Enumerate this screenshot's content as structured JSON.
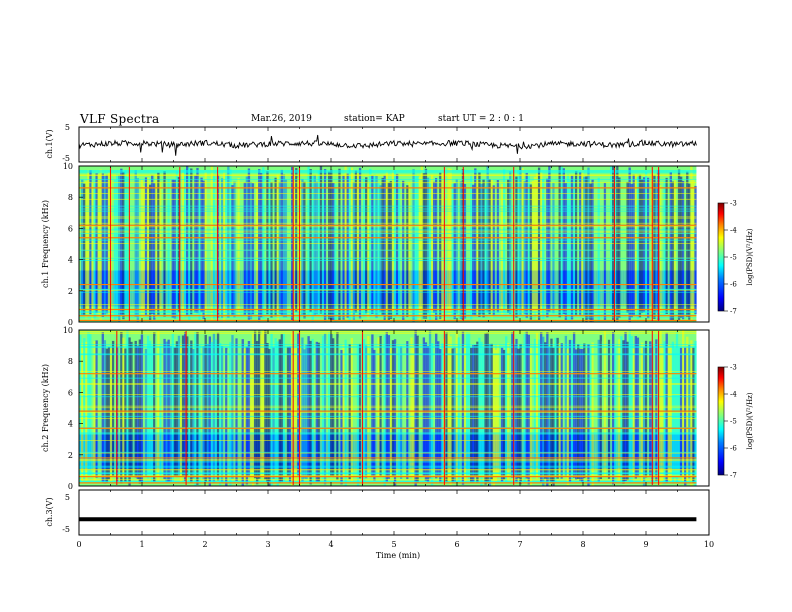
{
  "header": {
    "title": "VLF Spectra",
    "date": "Mar.26, 2019",
    "station": "station= KAP",
    "start": "start  UT =   2 : 0  : 1"
  },
  "colorbar": {
    "label": "log(PSD)(V²/Hz)",
    "ticks": [
      "-3",
      "-4",
      "-5",
      "-6",
      "-7"
    ]
  },
  "colors": {
    "background": "#ffffff",
    "frame": "#000000",
    "colormap": [
      "#00007f",
      "#0000ff",
      "#0080ff",
      "#00ffff",
      "#80ff80",
      "#ffff00",
      "#ff8000",
      "#ff0000",
      "#7f0000"
    ]
  },
  "chart_data": [
    {
      "type": "line",
      "ylabel": "ch.1(V)",
      "ylim": [
        -5,
        5
      ],
      "ytick_labels": [
        "5",
        "-5"
      ],
      "xlim": [
        0,
        10
      ],
      "x_extent_min": [
        0,
        9.8
      ],
      "description_level": "noisy waveform centred near 0 V, roughly -1 to +1 V",
      "x": [
        0,
        0.5,
        1,
        1.5,
        2,
        2.5,
        3,
        3.5,
        4,
        4.5,
        5,
        5.5,
        6,
        6.5,
        7,
        7.5,
        8,
        8.5,
        9,
        9.5,
        9.8
      ],
      "values": [
        -0.2,
        0.3,
        0.4,
        -0.1,
        0.5,
        -0.3,
        0.2,
        0.4,
        0.1,
        -0.4,
        0.3,
        0.1,
        0.5,
        -0.2,
        -0.5,
        0.1,
        0.3,
        -0.2,
        0.4,
        0.0,
        0.3
      ]
    },
    {
      "type": "heatmap",
      "ylabel": "ch.1\nFrequency (kHz)",
      "ylim": [
        0,
        10
      ],
      "ytick_labels": [
        "0",
        "2",
        "4",
        "6",
        "8",
        "10"
      ],
      "xlim": [
        0,
        10
      ],
      "x_extent_min": [
        0,
        9.8
      ],
      "zlim": [
        -7,
        -3
      ],
      "zlabel": "log(PSD)(V²/Hz)",
      "strong_lines_khz": [
        0.1,
        0.4,
        0.8,
        2.4,
        5.4,
        6.2,
        8.6
      ],
      "impulses_min": [
        0.5,
        0.8,
        1.6,
        2.2,
        3.4,
        3.5,
        5.8,
        6.1,
        6.9,
        8.5,
        9.1,
        9.2
      ]
    },
    {
      "type": "heatmap",
      "ylabel": "ch.2\nFrequency (kHz)",
      "ylim": [
        0,
        10
      ],
      "ytick_labels": [
        "0",
        "2",
        "4",
        "6",
        "8",
        "10"
      ],
      "xlim": [
        0,
        10
      ],
      "x_extent_min": [
        0,
        9.8
      ],
      "zlim": [
        -7,
        -3
      ],
      "zlabel": "log(PSD)(V²/Hz)",
      "strong_lines_khz": [
        0.2,
        0.6,
        1.8,
        3.7,
        4.8,
        7.2
      ],
      "impulses_min": [
        0.6,
        1.7,
        3.4,
        3.5,
        4.5,
        5.8,
        6.9,
        9.1,
        9.2
      ]
    },
    {
      "type": "line",
      "ylabel": "ch.3(V)",
      "ylim": [
        -5,
        5
      ],
      "ytick_labels": [
        "5",
        "-5"
      ],
      "xlim": [
        0,
        10
      ],
      "xlabel": "Time (min)",
      "xtick_labels": [
        "0",
        "1",
        "2",
        "3",
        "4",
        "5",
        "6",
        "7",
        "8",
        "9",
        "10"
      ],
      "x": [
        0,
        9.8
      ],
      "values": [
        -1.5,
        -1.5
      ]
    }
  ]
}
